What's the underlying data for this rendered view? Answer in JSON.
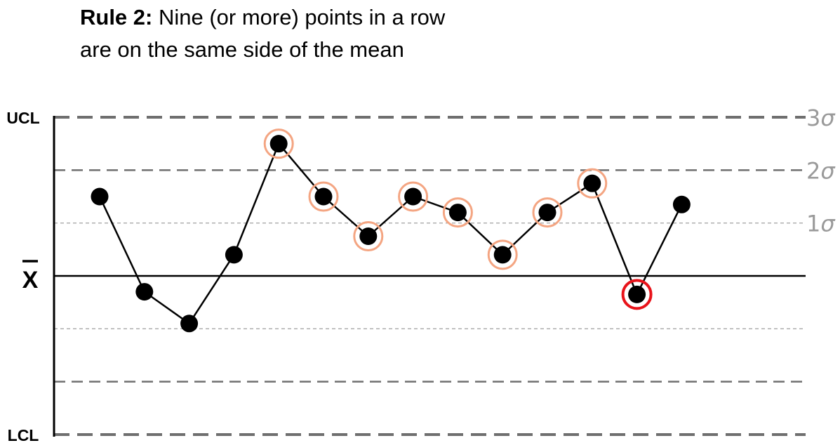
{
  "title": {
    "rule_label": "Rule 2:",
    "line1": "Nine (or more) points in a row",
    "line2": "are on the same side of the mean"
  },
  "chart_data": {
    "type": "line",
    "title": "Rule 2: Nine (or more) points in a row are on the same side of the mean",
    "xlabel": "",
    "ylabel": "",
    "y_unit": "sigma",
    "ylim": [
      -3,
      3
    ],
    "control_lines": [
      {
        "label": "UCL",
        "value": 3,
        "sigma_label": "3σ",
        "style": "dashed-thick"
      },
      {
        "label": "",
        "value": 2,
        "sigma_label": "2σ",
        "style": "dashed-medium"
      },
      {
        "label": "",
        "value": 1,
        "sigma_label": "1σ",
        "style": "dashed-thin"
      },
      {
        "label": "X̄",
        "value": 0,
        "sigma_label": "",
        "style": "solid"
      },
      {
        "label": "",
        "value": -1,
        "sigma_label": "",
        "style": "dashed-thin"
      },
      {
        "label": "",
        "value": -2,
        "sigma_label": "",
        "style": "dashed-medium"
      },
      {
        "label": "LCL",
        "value": -3,
        "sigma_label": "",
        "style": "dashed-thick"
      }
    ],
    "x": [
      1,
      2,
      3,
      4,
      5,
      6,
      7,
      8,
      9,
      10,
      11,
      12,
      13,
      14
    ],
    "values": [
      1.5,
      -0.3,
      -0.9,
      0.4,
      2.5,
      1.5,
      0.75,
      1.5,
      1.2,
      0.4,
      1.2,
      1.75,
      -0.35,
      1.35
    ],
    "highlighted_points": [
      4,
      5,
      6,
      7,
      8,
      9,
      10,
      11
    ],
    "violation_point": 12,
    "colors": {
      "line": "#000000",
      "point": "#000000",
      "highlight_ring": "#f4a582",
      "violation_ring": "#e8131a",
      "dashed_grid": "#6f6f6f",
      "thin_grid": "#a8a8a8",
      "sigma_text": "#9a9a9a"
    }
  }
}
